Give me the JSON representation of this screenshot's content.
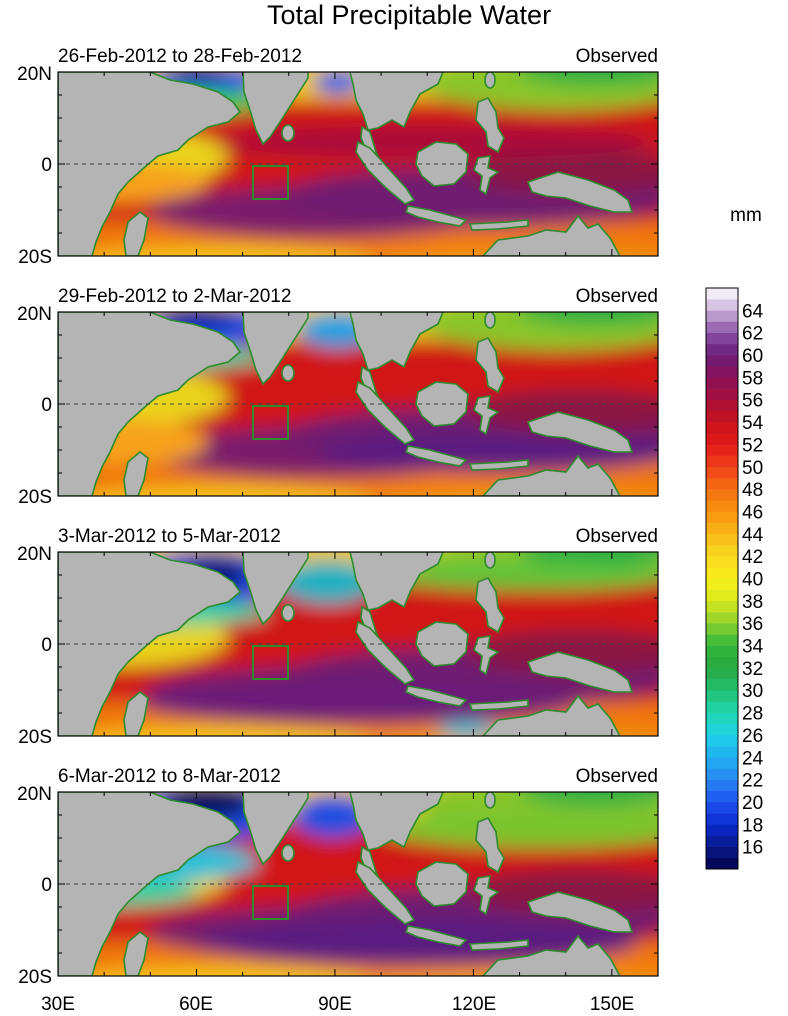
{
  "title": "Total Precipitable Water",
  "colorbar": {
    "unit": "mm",
    "min": 14,
    "max": 66,
    "step": 1,
    "tick_labels": [
      "16",
      "18",
      "20",
      "22",
      "24",
      "26",
      "28",
      "30",
      "32",
      "34",
      "36",
      "38",
      "40",
      "42",
      "44",
      "46",
      "48",
      "50",
      "52",
      "54",
      "56",
      "58",
      "60",
      "62",
      "64"
    ]
  },
  "axes": {
    "x_tick_labels": [
      "30E",
      "60E",
      "90E",
      "120E",
      "150E"
    ],
    "y_tick_labels": [
      "20N",
      "0",
      "20S"
    ]
  },
  "panels": [
    {
      "date_range": "26-Feb-2012 to 28-Feb-2012",
      "tag": "Observed"
    },
    {
      "date_range": "29-Feb-2012 to 2-Mar-2012",
      "tag": "Observed"
    },
    {
      "date_range": "3-Mar-2012 to 5-Mar-2012",
      "tag": "Observed"
    },
    {
      "date_range": "6-Mar-2012 to 8-Mar-2012",
      "tag": "Observed"
    }
  ],
  "colors": {
    "land": "#b4b4b4",
    "coastline": "#2e8b2e",
    "equator_line": "#444444"
  }
}
